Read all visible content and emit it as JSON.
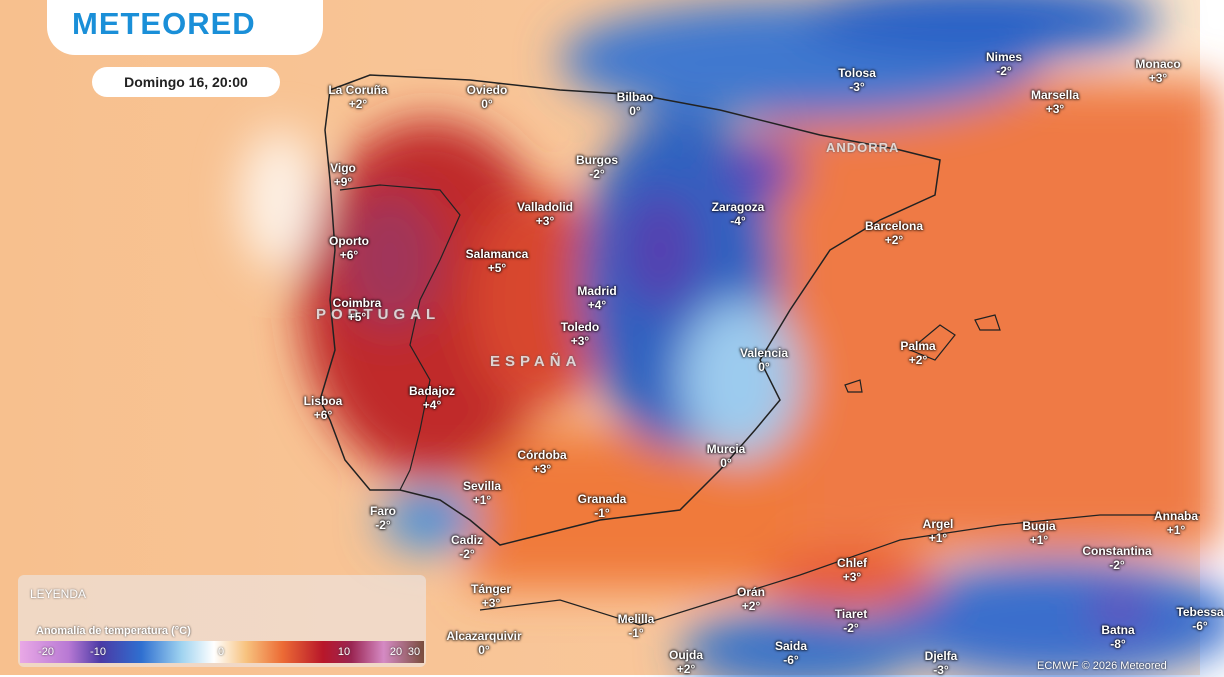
{
  "header": {
    "logo": "METEORED",
    "datetime": "Domingo 16, 20:00"
  },
  "regions": [
    "PORTUGAL",
    "ESPAÑA",
    "ANDORRA"
  ],
  "cities": [
    {
      "name": "La Coruña",
      "value": "+2°"
    },
    {
      "name": "Oviedo",
      "value": "0°"
    },
    {
      "name": "Bilbao",
      "value": "0°"
    },
    {
      "name": "Tolosa",
      "value": "-3°"
    },
    {
      "name": "Nimes",
      "value": "-2°"
    },
    {
      "name": "Monaco",
      "value": "+3°"
    },
    {
      "name": "Marsella",
      "value": "+3°"
    },
    {
      "name": "Burgos",
      "value": "-2°"
    },
    {
      "name": "Vigo",
      "value": "+9°"
    },
    {
      "name": "Valladolid",
      "value": "+3°"
    },
    {
      "name": "Zaragoza",
      "value": "-4°"
    },
    {
      "name": "Barcelona",
      "value": "+2°"
    },
    {
      "name": "Oporto",
      "value": "+6°"
    },
    {
      "name": "Salamanca",
      "value": "+5°"
    },
    {
      "name": "Madrid",
      "value": "+4°"
    },
    {
      "name": "Coimbra",
      "value": "+5°"
    },
    {
      "name": "Toledo",
      "value": "+3°"
    },
    {
      "name": "Valencia",
      "value": "0°"
    },
    {
      "name": "Palma",
      "value": "+2°"
    },
    {
      "name": "Badajoz",
      "value": "+4°"
    },
    {
      "name": "Lisboa",
      "value": "+6°"
    },
    {
      "name": "Córdoba",
      "value": "+3°"
    },
    {
      "name": "Murcia",
      "value": "0°"
    },
    {
      "name": "Sevilla",
      "value": "+1°"
    },
    {
      "name": "Granada",
      "value": "-1°"
    },
    {
      "name": "Faro",
      "value": "-2°"
    },
    {
      "name": "Cadiz",
      "value": "-2°"
    },
    {
      "name": "Argel",
      "value": "+1°"
    },
    {
      "name": "Bugia",
      "value": "+1°"
    },
    {
      "name": "Annaba",
      "value": "+1°"
    },
    {
      "name": "Constantina",
      "value": "-2°"
    },
    {
      "name": "Chlef",
      "value": "+3°"
    },
    {
      "name": "Tánger",
      "value": "+3°"
    },
    {
      "name": "Orán",
      "value": "+2°"
    },
    {
      "name": "Tiaret",
      "value": "-2°"
    },
    {
      "name": "Batna",
      "value": "-8°"
    },
    {
      "name": "Tebessa",
      "value": "-6°"
    },
    {
      "name": "Melilla",
      "value": "-1°"
    },
    {
      "name": "Alcazarquivir",
      "value": "0°"
    },
    {
      "name": "Saida",
      "value": "-6°"
    },
    {
      "name": "Djelfa",
      "value": "-3°"
    },
    {
      "name": "Oujda",
      "value": "+2°"
    }
  ],
  "legend": {
    "title": "LEYENDA",
    "subtitle": "Anomalía de temperatura (°C)",
    "scale": [
      "-20",
      "-10",
      "0",
      "10",
      "20",
      "30"
    ]
  },
  "credit": "ECMWF © 2026 Meteored"
}
